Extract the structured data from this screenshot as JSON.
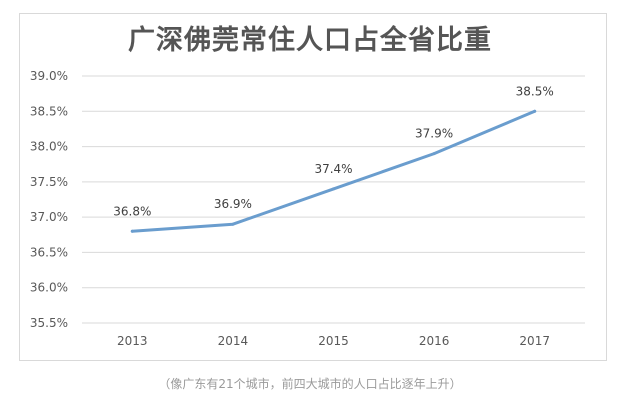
{
  "chart_data": {
    "type": "line",
    "title": "广深佛莞常住人口占全省比重",
    "categories": [
      "2013",
      "2014",
      "2015",
      "2016",
      "2017"
    ],
    "series": [
      {
        "values": [
          36.8,
          36.9,
          37.4,
          37.9,
          38.5
        ],
        "labels": [
          "36.8%",
          "36.9%",
          "37.4%",
          "37.9%",
          "38.5%"
        ]
      }
    ],
    "yticks": [
      "35.5%",
      "36.0%",
      "36.5%",
      "37.0%",
      "37.5%",
      "38.0%",
      "38.5%",
      "39.0%"
    ],
    "ylim": [
      35.5,
      39.0
    ],
    "grid": true,
    "line_color": "#6a9dce"
  },
  "caption": "（像广东有21个城市，前四大城市的人口占比逐年上升）"
}
